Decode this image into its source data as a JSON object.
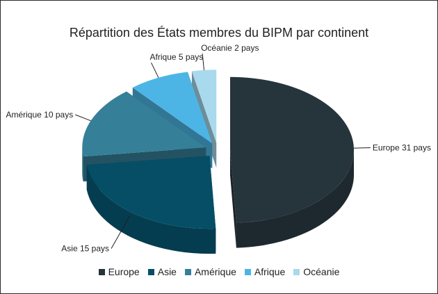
{
  "chart_data": {
    "type": "pie",
    "title": "Répartition des États membres du BIPM par continent",
    "categories": [
      "Europe",
      "Asie",
      "Amérique",
      "Afrique",
      "Océanie"
    ],
    "values": [
      31,
      15,
      10,
      5,
      2
    ],
    "data_labels": [
      "Europe 31 pays",
      "Asie 15 pays",
      "Amérique 10 pays",
      "Afrique 5 pays",
      "Océanie 2 pays"
    ],
    "colors": [
      "#26353c",
      "#064e66",
      "#367f99",
      "#4db5e5",
      "#a9d9ec"
    ],
    "style": "3d-exploded",
    "legend": "bottom"
  }
}
